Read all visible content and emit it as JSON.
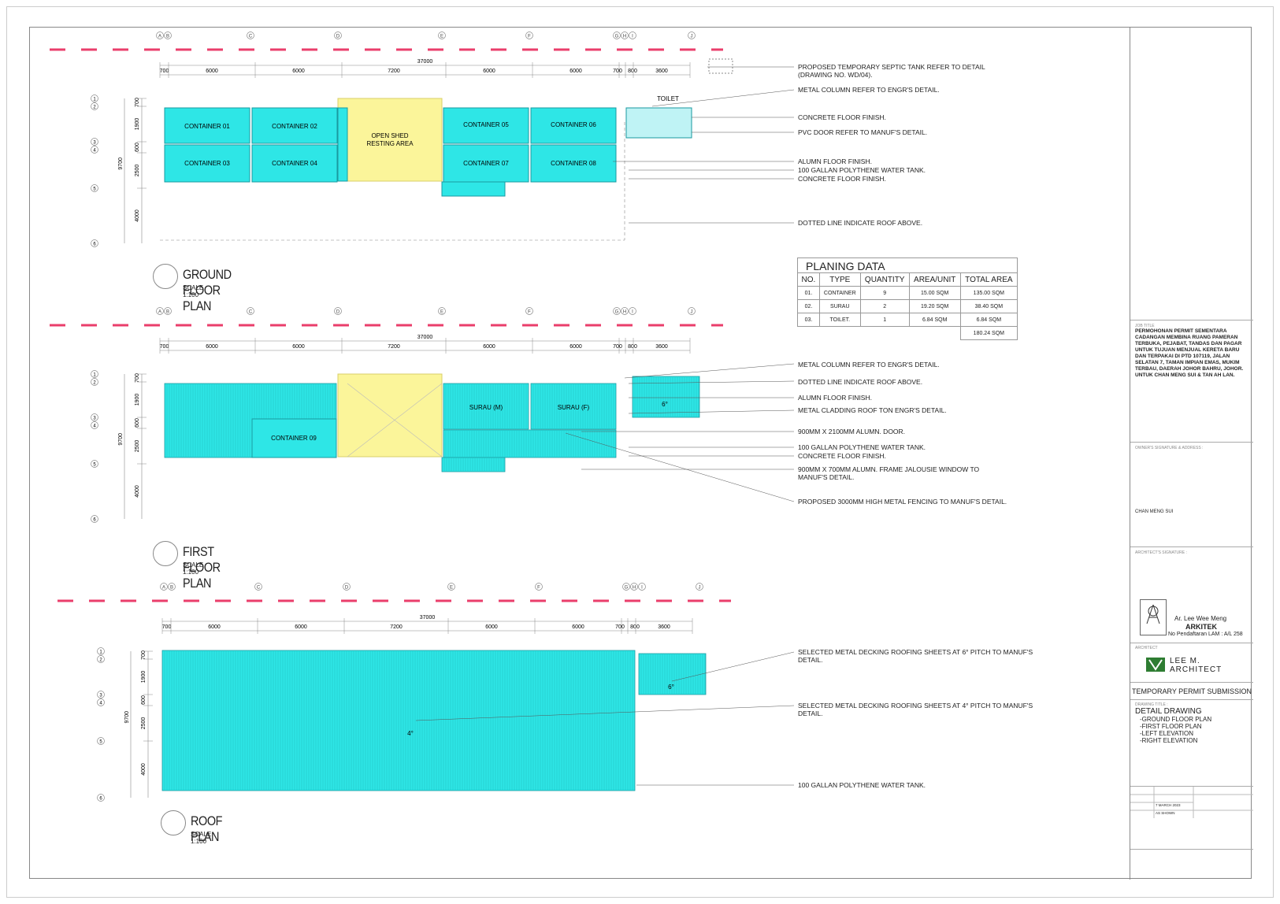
{
  "plans": {
    "ground": {
      "title": "GROUND FLOOR PLAN",
      "scale": "SCALE 1:100",
      "containers": [
        "CONTAINER 01",
        "CONTAINER 02",
        "CONTAINER 03",
        "CONTAINER 04",
        "CONTAINER 05",
        "CONTAINER 06",
        "CONTAINER 07",
        "CONTAINER 08"
      ],
      "shed": "OPEN SHED",
      "shed2": "RESTING AREA",
      "toilet": "TOILET",
      "notes": [
        "PROPOSED TEMPORARY SEPTIC TANK REFER TO DETAIL",
        "(DRAWING NO. WD/04).",
        "METAL COLUMN REFER TO ENGR'S DETAIL.",
        "CONCRETE FLOOR FINISH.",
        "PVC DOOR REFER TO MANUF'S DETAIL.",
        "ALUMN FLOOR FINISH.",
        "100 GALLAN POLYTHENE WATER TANK.",
        "CONCRETE FLOOR FINISH.",
        "DOTTED LINE INDICATE ROOF ABOVE."
      ]
    },
    "first": {
      "title": "FIRST FLOOR PLAN",
      "scale": "SCALE 1:100",
      "container": "CONTAINER 09",
      "surau_m": "SURAU (M)",
      "surau_f": "SURAU (F)",
      "pitch": "6°",
      "notes": [
        "METAL COLUMN REFER TO ENGR'S DETAIL.",
        "DOTTED LINE INDICATE ROOF ABOVE.",
        "ALUMN FLOOR FINISH.",
        "METAL CLADDING ROOF TON ENGR'S DETAIL.",
        "900MM X 2100MM ALUMN. DOOR.",
        "100 GALLAN POLYTHENE WATER TANK.",
        "CONCRETE FLOOR FINISH.",
        "900MM X 700MM ALUMN. FRAME JALOUSIE WINDOW TO",
        "MANUF'S DETAIL.",
        "PROPOSED 3000MM HIGH METAL FENCING TO MANUF'S DETAIL."
      ]
    },
    "roof": {
      "title": "ROOF PLAN",
      "scale": "SCALE 1:100",
      "pitch_main": "4°",
      "pitch_side": "6°",
      "notes": [
        "SELECTED METAL DECKING ROOFING SHEETS AT 6° PITCH TO MANUF'S",
        "DETAIL.",
        "SELECTED METAL DECKING ROOFING SHEETS AT 4° PITCH TO MANUF'S",
        "DETAIL.",
        "100 GALLAN POLYTHENE WATER TANK."
      ]
    },
    "dims": {
      "total": "37000",
      "segments": [
        "700",
        "6000",
        "6000",
        "7200",
        "6000",
        "6000",
        "700",
        "800",
        "3600"
      ],
      "vertical": [
        "700",
        "1900",
        "600",
        "2500",
        "4000"
      ],
      "overall_v": "9700",
      "grid_letters": [
        "A",
        "B",
        "C",
        "D",
        "E",
        "F",
        "G",
        "H",
        "I",
        "J"
      ],
      "grid_numbers": [
        "1",
        "2",
        "3",
        "4",
        "5",
        "6"
      ]
    }
  },
  "planing_data": {
    "title": "PLANING DATA",
    "headers": [
      "NO.",
      "TYPE",
      "QUANTITY",
      "AREA/UNIT",
      "TOTAL AREA"
    ],
    "rows": [
      [
        "01.",
        "CONTAINER",
        "9",
        "15.00 SQM",
        "135.00 SQM"
      ],
      [
        "02.",
        "SURAU",
        "2",
        "19.20 SQM",
        "38.40 SQM"
      ],
      [
        "03.",
        "TOILET.",
        "1",
        "6.84 SQM",
        "6.84 SQM"
      ]
    ],
    "total": "180.24 SQM"
  },
  "title_block": {
    "job_title_label": "JOB TITLE",
    "job_title": "PERMOHONAN PERMIT SEMENTARA CADANGAN MEMBINA RUANG PAMERAN TERBUKA, PEJABAT, TANDAS DAN PAGAR UNTUK TUJUAN MENJUAL KERETA BARU DAN TERPAKAI DI PTD 107119, JALAN SELATAN 7, TAMAN IMPIAN EMAS, MUKIM TERBAU, DAERAH JOHOR BAHRU, JOHOR.",
    "job_title_owner": "UNTUK CHAN MENG SUI & TAN AH LAN.",
    "owner_label": "OWNER'S SIGNATURE & ADDRESS :",
    "owner_name": "CHAN MENG SUI",
    "architect_sig_label": "ARCHITECT'S SIGNATURE :",
    "architect_name": "Ar. Lee Wee Meng",
    "arkitek": "ARKITEK",
    "lam": "No Pendaftaran LAM : A/L 258",
    "architect_label": "ARCHITECT",
    "firm": "LEE M. ARCHITECT",
    "submission": "TEMPORARY PERMIT SUBMISSION",
    "drawing_title_label": "DRAWING TITLE :",
    "drawing_title": "DETAIL DRAWING",
    "drawing_items": [
      "-GROUND FLOOR PLAN",
      "-FIRST FLOOR PLAN",
      "-LEFT ELEVATION",
      "-RIGHT ELEVATION"
    ],
    "date": "7 MARCH 2023",
    "scale": "AS SHOWN"
  }
}
